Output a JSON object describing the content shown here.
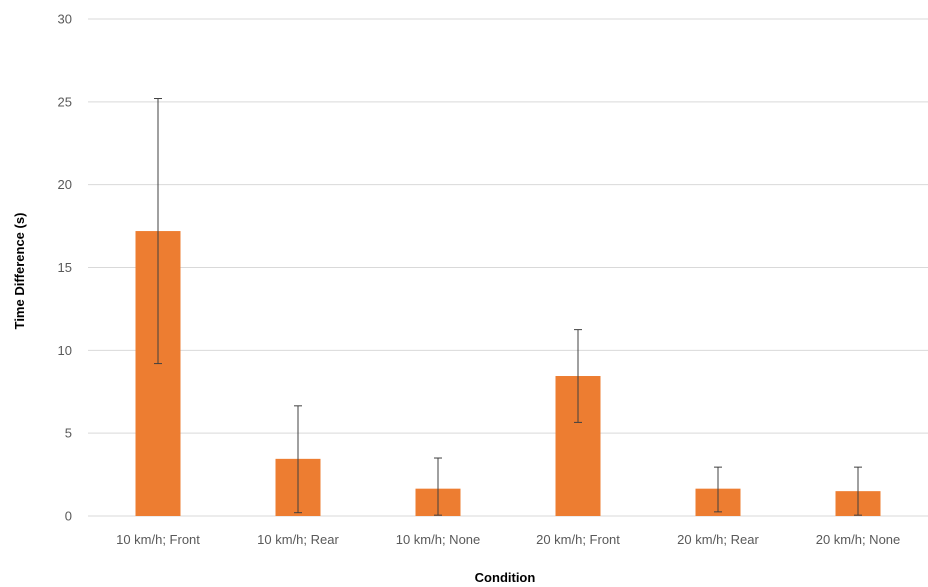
{
  "chart_data": {
    "type": "bar",
    "title": "",
    "xlabel": "Condition",
    "ylabel": "Time Difference (s)",
    "categories": [
      "10 km/h; Front",
      "10 km/h; Rear",
      "10 km/h; None",
      "20 km/h; Front",
      "20 km/h; Rear",
      "20 km/h; None"
    ],
    "values": [
      17.2,
      3.45,
      1.65,
      8.45,
      1.65,
      1.5
    ],
    "error_low": [
      9.2,
      0.2,
      0.05,
      5.65,
      0.25,
      0.05
    ],
    "error_high": [
      25.2,
      6.65,
      3.5,
      11.25,
      2.95,
      2.95
    ],
    "ylim": [
      0,
      30
    ],
    "yticks": [
      0,
      5,
      10,
      15,
      20,
      25,
      30
    ],
    "grid": true,
    "legend": "none",
    "bar_color": "#ED7D31",
    "grid_color": "#D9D9D9",
    "error_bar_color": "#404040"
  }
}
